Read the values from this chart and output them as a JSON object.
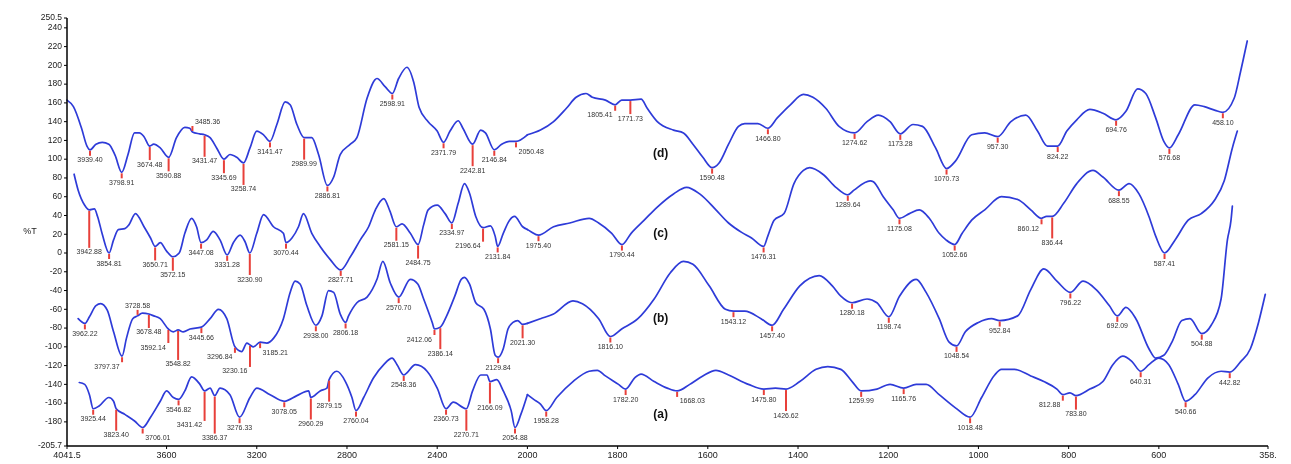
{
  "chart_data": [
    {
      "type": "line",
      "ylabel": "%T",
      "xlim": [
        4041.5,
        2000
      ],
      "xticks": [
        4041.5,
        3600,
        3200,
        2800,
        2400
      ],
      "ylim": [
        -205.7,
        250.5
      ],
      "yticks": [
        250.5,
        240,
        220,
        200,
        180,
        160,
        140,
        120,
        100,
        80,
        60,
        40,
        20,
        0,
        -20,
        -40,
        -60,
        -80,
        -100,
        -120,
        -140,
        -160,
        -180,
        -205.7
      ],
      "series": [
        {
          "color": "#2e3bd8",
          "x": [
            4041.5,
            4013,
            3977,
            3953,
            3939.4,
            3913,
            3885,
            3856,
            3828,
            3798.9,
            3771,
            3742,
            3721,
            3700,
            3674.5,
            3657,
            3628,
            3590.9,
            3556,
            3519,
            3497,
            3485.4,
            3453,
            3431.5,
            3407,
            3378,
            3345.7,
            3319,
            3289,
            3258.7,
            3230,
            3200,
            3170,
            3141.5,
            3111,
            3074,
            3052,
            3022,
            2990,
            2956,
            2926,
            2886.8,
            2859,
            2830,
            2785,
            2756,
            2711,
            2667,
            2630,
            2598.9,
            2571,
            2534,
            2504,
            2480,
            2440,
            2400,
            2371.8,
            2343,
            2307,
            2286,
            2242.8,
            2207,
            2186,
            2146.8,
            2114,
            2079,
            2050.5,
            2000
          ],
          "values": [
            163,
            156,
            133,
            114,
            110,
            116,
            118,
            116,
            104,
            86,
            105,
            128,
            128,
            124,
            114,
            116,
            112,
            102,
            123,
            134,
            133,
            129,
            127,
            126,
            123,
            112,
            100,
            105,
            102,
            96,
            112,
            130,
            126,
            119,
            137,
            161,
            158,
            137,
            123,
            123,
            105,
            72,
            81,
            105,
            116,
            123,
            165,
            186,
            177,
            170,
            186,
            198,
            182,
            155,
            140,
            130,
            118,
            130,
            141,
            133,
            116,
            131,
            128,
            110,
            116,
            119,
            119,
            126
          ]
        },
        {
          "color": "#2e3bd8",
          "x": [
            4010,
            3992,
            3963,
            3942.9,
            3920,
            3906,
            3885,
            3854.8,
            3835,
            3814,
            3785,
            3767,
            3738,
            3700,
            3671,
            3650.7,
            3628,
            3600,
            3572.2,
            3544,
            3519,
            3489,
            3467,
            3447.1,
            3422,
            3393,
            3363,
            3331.3,
            3304,
            3274,
            3252,
            3230.9,
            3200,
            3170,
            3126,
            3082,
            3070.4,
            3044,
            3015,
            2993,
            2956,
            2919,
            2874,
            2827.7,
            2785,
            2741,
            2704,
            2674,
            2637,
            2610,
            2581.2,
            2556,
            2519,
            2484.8,
            2460,
            2440,
            2400,
            2365,
            2335,
            2307,
            2279,
            2257,
            2229,
            2196.6,
            2164,
            2143,
            2131.8,
            2107,
            2079,
            2057,
            2021,
            2000
          ],
          "values": [
            84,
            67,
            51,
            46,
            47,
            39,
            20,
            0,
            14,
            25,
            26,
            30,
            42,
            28,
            16,
            7,
            11,
            2,
            -4,
            0,
            21,
            37,
            28,
            11,
            14,
            23,
            14,
            -2,
            11,
            19,
            12,
            0,
            21,
            41,
            28,
            21,
            11,
            16,
            28,
            42,
            21,
            7,
            -7,
            -18,
            -4,
            14,
            28,
            46,
            58,
            45,
            28,
            31,
            21,
            9,
            30,
            46,
            51,
            42,
            32,
            53,
            74,
            64,
            39,
            27,
            29,
            18,
            7,
            21,
            35,
            39,
            28,
            25
          ]
        },
        {
          "color": "#2e3bd8",
          "x": [
            3992,
            3962.2,
            3942,
            3913,
            3892,
            3863,
            3835,
            3797.4,
            3778,
            3750,
            3728.6,
            3707,
            3678.5,
            3657,
            3628,
            3592.1,
            3570,
            3548.8,
            3526,
            3496,
            3445.7,
            3407,
            3370,
            3333,
            3296.8,
            3267,
            3244,
            3230.2,
            3215,
            3185.2,
            3155,
            3126,
            3082,
            3052,
            3030,
            3008,
            2978,
            2938,
            2911,
            2882,
            2859,
            2830,
            2806.2,
            2793,
            2756,
            2711,
            2667,
            2641,
            2608,
            2570.7,
            2519,
            2486,
            2460,
            2422,
            2412.1,
            2386.1,
            2358,
            2322,
            2293,
            2279,
            2257,
            2229,
            2193,
            2164,
            2143,
            2129.8,
            2107,
            2086,
            2064,
            2043,
            2021.3,
            2000
          ],
          "values": [
            -70,
            -75,
            -68,
            -56,
            -54,
            -61,
            -84,
            -110,
            -91,
            -70,
            -67,
            -64,
            -65,
            -67,
            -70,
            -81,
            -84,
            -82,
            -84,
            -81,
            -79,
            -70,
            -60,
            -70,
            -100,
            -105,
            -96,
            -98,
            -100,
            -95,
            -96,
            -91,
            -70,
            -42,
            -30,
            -33,
            -56,
            -77,
            -67,
            -40,
            -42,
            -65,
            -74,
            -67,
            -53,
            -47,
            -28,
            -9,
            -32,
            -47,
            -28,
            -33,
            -49,
            -74,
            -81,
            -79,
            -67,
            -46,
            -28,
            -26,
            -33,
            -53,
            -60,
            -81,
            -109,
            -111,
            -102,
            -81,
            -74,
            -72,
            -76,
            -75
          ]
        },
        {
          "color": "#2e3bd8",
          "x": [
            3987,
            3963,
            3942,
            3925.4,
            3899,
            3856,
            3835,
            3823.4,
            3785,
            3742,
            3706,
            3671,
            3628,
            3600,
            3570,
            3546.8,
            3519,
            3489,
            3452,
            3431.4,
            3407,
            3386.4,
            3363,
            3319,
            3276.3,
            3230,
            3200,
            3141,
            3078,
            3022,
            2970,
            2960.3,
            2919,
            2889,
            2879.2,
            2845,
            2807,
            2778,
            2760,
            2726,
            2682,
            2637,
            2600,
            2578,
            2548.4,
            2496,
            2445,
            2400,
            2360.7,
            2329,
            2270.7,
            2243,
            2207,
            2179,
            2166.1,
            2136,
            2107,
            2072,
            2054.9,
            2029,
            2000
          ],
          "values": [
            -138,
            -140,
            -151,
            -166,
            -163,
            -154,
            -158,
            -166,
            -172,
            -179,
            -186,
            -175,
            -158,
            -147,
            -154,
            -156,
            -147,
            -132,
            -140,
            -147,
            -144,
            -152,
            -144,
            -151,
            -175,
            -154,
            -144,
            -151,
            -158,
            -152,
            -147,
            -154,
            -147,
            -144,
            -135,
            -126,
            -137,
            -154,
            -168,
            -154,
            -133,
            -119,
            -112,
            -119,
            -130,
            -119,
            -126,
            -144,
            -166,
            -159,
            -166,
            -147,
            -130,
            -130,
            -137,
            -135,
            -147,
            -168,
            -186,
            -172,
            -151
          ]
        }
      ],
      "annotations": [
        {
          "text": "3939.40",
          "x": 3939.4,
          "y": 110
        },
        {
          "text": "3798.91",
          "x": 3798.91,
          "y": 86
        },
        {
          "text": "3674.48",
          "x": 3674.48,
          "y": 114
        },
        {
          "text": "3590.88",
          "x": 3590.88,
          "y": 102
        },
        {
          "text": "3485.36",
          "x": 3485.36,
          "y": 129
        },
        {
          "text": "3431.47",
          "x": 3431.47,
          "y": 126
        },
        {
          "text": "3345.69",
          "x": 3345.69,
          "y": 100
        },
        {
          "text": "3258.74",
          "x": 3258.74,
          "y": 96
        },
        {
          "text": "3141.47",
          "x": 3141.47,
          "y": 119
        },
        {
          "text": "2989.99",
          "x": 2989.99,
          "y": 123
        },
        {
          "text": "2886.81",
          "x": 2886.81,
          "y": 72
        },
        {
          "text": "2598.91",
          "x": 2598.91,
          "y": 170
        },
        {
          "text": "2371.79",
          "x": 2371.79,
          "y": 118
        },
        {
          "text": "2242.81",
          "x": 2242.81,
          "y": 116
        },
        {
          "text": "2146.84",
          "x": 2146.84,
          "y": 110
        },
        {
          "text": "2050.48",
          "x": 2050.48,
          "y": 119
        },
        {
          "text": "3942.88",
          "x": 3942.88,
          "y": 46
        },
        {
          "text": "3854.81",
          "x": 3854.81,
          "y": 0
        },
        {
          "text": "3650.71",
          "x": 3650.71,
          "y": 7
        },
        {
          "text": "3572.15",
          "x": 3572.15,
          "y": -4
        },
        {
          "text": "3447.08",
          "x": 3447.08,
          "y": 11
        },
        {
          "text": "3331.28",
          "x": 3331.28,
          "y": -2
        },
        {
          "text": "3230.90",
          "x": 3230.9,
          "y": 0
        },
        {
          "text": "3070.44",
          "x": 3070.44,
          "y": 11
        },
        {
          "text": "2827.71",
          "x": 2827.71,
          "y": -18
        },
        {
          "text": "2581.15",
          "x": 2581.15,
          "y": 28
        },
        {
          "text": "2484.75",
          "x": 2484.75,
          "y": 9
        },
        {
          "text": "2334.97",
          "x": 2334.97,
          "y": 32
        },
        {
          "text": "2196.64",
          "x": 2196.64,
          "y": 27
        },
        {
          "text": "2131.84",
          "x": 2131.84,
          "y": 7
        },
        {
          "text": "3962.22",
          "x": 3962.22,
          "y": -75
        },
        {
          "text": "3797.37",
          "x": 3797.37,
          "y": -110
        },
        {
          "text": "3728.58",
          "x": 3728.58,
          "y": -67
        },
        {
          "text": "3678.48",
          "x": 3678.48,
          "y": -65
        },
        {
          "text": "3592.14",
          "x": 3592.14,
          "y": -81
        },
        {
          "text": "3548.82",
          "x": 3548.82,
          "y": -82
        },
        {
          "text": "3445.66",
          "x": 3445.66,
          "y": -79
        },
        {
          "text": "3296.84",
          "x": 3296.84,
          "y": -100
        },
        {
          "text": "3230.16",
          "x": 3230.16,
          "y": -98
        },
        {
          "text": "3185.21",
          "x": 3185.21,
          "y": -95
        },
        {
          "text": "2938.00",
          "x": 2938,
          "y": -77
        },
        {
          "text": "2806.18",
          "x": 2806.18,
          "y": -74
        },
        {
          "text": "2570.70",
          "x": 2570.7,
          "y": -47
        },
        {
          "text": "2412.06",
          "x": 2412.06,
          "y": -81
        },
        {
          "text": "2386.14",
          "x": 2386.14,
          "y": -79
        },
        {
          "text": "2129.84",
          "x": 2129.84,
          "y": -111
        },
        {
          "text": "2021.30",
          "x": 2021.3,
          "y": -76
        },
        {
          "text": "3925.44",
          "x": 3925.44,
          "y": -166
        },
        {
          "text": "3823.40",
          "x": 3823.4,
          "y": -166
        },
        {
          "text": "3706.01",
          "x": 3706.01,
          "y": -186
        },
        {
          "text": "3546.82",
          "x": 3546.82,
          "y": -156
        },
        {
          "text": "3431.42",
          "x": 3431.42,
          "y": -147
        },
        {
          "text": "3386.37",
          "x": 3386.37,
          "y": -152
        },
        {
          "text": "3276.33",
          "x": 3276.33,
          "y": -175
        },
        {
          "text": "3078.05",
          "x": 3078.05,
          "y": -158
        },
        {
          "text": "2960.29",
          "x": 2960.29,
          "y": -154
        },
        {
          "text": "2879.15",
          "x": 2879.15,
          "y": -135
        },
        {
          "text": "2760.04",
          "x": 2760.04,
          "y": -168
        },
        {
          "text": "2548.36",
          "x": 2548.36,
          "y": -130
        },
        {
          "text": "2360.73",
          "x": 2360.73,
          "y": -166
        },
        {
          "text": "2270.71",
          "x": 2270.71,
          "y": -166
        },
        {
          "text": "2166.09",
          "x": 2166.09,
          "y": -137
        },
        {
          "text": "2054.88",
          "x": 2054.88,
          "y": -186
        }
      ]
    },
    {
      "type": "line",
      "xlim": [
        2000,
        358
      ],
      "xticks": [
        2000,
        1800,
        1600,
        1400,
        1200,
        1000,
        800,
        600,
        {
          "value": 358,
          "label": "358."
        }
      ],
      "ylim": [
        -205.7,
        250.5
      ],
      "tick_labels": "x",
      "series": [
        {
          "name": "(d)",
          "color": "#2e3bd8",
          "x": [
            2000,
            1971,
            1942,
            1914,
            1892,
            1870,
            1856,
            1827,
            1805.4,
            1791,
            1771.7,
            1748,
            1734,
            1712,
            1676,
            1654,
            1633,
            1611,
            1590.5,
            1575,
            1554,
            1532,
            1518,
            1489,
            1466.8,
            1446,
            1417,
            1388,
            1367,
            1338,
            1309,
            1274.6,
            1247,
            1222,
            1196,
            1173.3,
            1145,
            1124,
            1095,
            1070.7,
            1051,
            1015,
            986,
            957.3,
            928,
            895,
            869,
            847,
            824.2,
            804,
            782,
            753,
            724,
            694.8,
            673,
            647,
            629,
            607,
            589,
            576.7,
            557,
            520,
            499,
            475,
            458.1,
            433,
            419,
            404
          ],
          "values": [
            126,
            131,
            140,
            154,
            166,
            170,
            166,
            163,
            158,
            163,
            163,
            164,
            154,
            140,
            131,
            128,
            116,
            102,
            91,
            96,
            116,
            135,
            138,
            138,
            133,
            144,
            158,
            169,
            166,
            154,
            135,
            128,
            140,
            147,
            140,
            127,
            137,
            135,
            112,
            90,
            98,
            126,
            128,
            124,
            140,
            147,
            130,
            114,
            114,
            130,
            142,
            153,
            149,
            142,
            151,
            175,
            170,
            144,
            119,
            112,
            126,
            158,
            156,
            152,
            150,
            165,
            193,
            226
          ]
        },
        {
          "name": "(c)",
          "color": "#2e3bd8",
          "x": [
            2000,
            1993,
            1975.4,
            1942,
            1906,
            1863,
            1842,
            1813,
            1790.4,
            1770,
            1741,
            1712,
            1676,
            1647,
            1618,
            1582,
            1554,
            1525,
            1503,
            1476.3,
            1467,
            1453,
            1431,
            1409,
            1388,
            1374,
            1345,
            1316,
            1289.6,
            1276,
            1240,
            1233,
            1211,
            1189,
            1175.1,
            1153,
            1131,
            1109,
            1087,
            1072,
            1052.7,
            1036,
            1015,
            986,
            949,
            913,
            884,
            860.1,
            849,
            836.4,
            811,
            782,
            746,
            724,
            688.6,
            666,
            644,
            622,
            607,
            587.4,
            564,
            535,
            506,
            477,
            455,
            437,
            426
          ],
          "values": [
            25,
            23,
            19,
            28,
            32,
            37,
            32,
            21,
            9,
            21,
            35,
            49,
            63,
            70,
            63,
            46,
            32,
            22,
            16,
            7,
            18,
            35,
            42,
            74,
            88,
            91,
            84,
            70,
            62,
            67,
            77,
            76,
            60,
            46,
            37,
            42,
            46,
            37,
            21,
            14,
            9,
            21,
            35,
            46,
            60,
            57,
            46,
            37,
            39,
            39,
            53,
            74,
            88,
            81,
            67,
            74,
            63,
            39,
            18,
            0,
            14,
            35,
            42,
            56,
            77,
            112,
            130
          ]
        },
        {
          "name": "(b)",
          "color": "#2e3bd8",
          "x": [
            2000,
            1971,
            1942,
            1899,
            1878,
            1842,
            1816.1,
            1791,
            1755,
            1719,
            1683,
            1654,
            1633,
            1597,
            1561,
            1543.1,
            1518,
            1482,
            1457.4,
            1432,
            1396,
            1353,
            1324,
            1305,
            1280.2,
            1247,
            1225,
            1198.7,
            1175,
            1138,
            1116,
            1087,
            1065,
            1048.5,
            1029,
            1000,
            971,
            952.8,
            913,
            884,
            855,
            826,
            796.2,
            768,
            739,
            710,
            692.1,
            673,
            651,
            622,
            607,
            589,
            571,
            549,
            531,
            504.9,
            484,
            462,
            448,
            440,
            437
          ],
          "values": [
            -75,
            -70,
            -65,
            -51,
            -54,
            -70,
            -89,
            -81,
            -70,
            -49,
            -21,
            -9,
            -12,
            -35,
            -60,
            -62,
            -62,
            -70,
            -77,
            -60,
            -35,
            -24,
            -35,
            -46,
            -53,
            -49,
            -53,
            -68,
            -46,
            -28,
            -42,
            -70,
            -95,
            -99,
            -84,
            -74,
            -70,
            -72,
            -67,
            -39,
            -17,
            -30,
            -42,
            -30,
            -39,
            -56,
            -67,
            -58,
            -70,
            -102,
            -112,
            -109,
            -95,
            -72,
            -70,
            -86,
            -77,
            -49,
            14,
            35,
            50
          ]
        },
        {
          "name": "(a)",
          "color": "#2e3bd8",
          "x": [
            2000,
            1986,
            1971,
            1958.3,
            1935,
            1899,
            1863,
            1845,
            1827,
            1798,
            1782.2,
            1762,
            1748,
            1719,
            1690,
            1668,
            1640,
            1611,
            1582,
            1554,
            1510,
            1475.8,
            1450,
            1426.6,
            1396,
            1360,
            1334,
            1305,
            1280,
            1260,
            1225,
            1196,
            1165.8,
            1138,
            1116,
            1087,
            1051,
            1018.5,
            993,
            964,
            949,
            920,
            884,
            855,
            826,
            812.9,
            797,
            783.8,
            753,
            724,
            702,
            680,
            659,
            640.3,
            622,
            600,
            578,
            557,
            540.7,
            520,
            491,
            462,
            442.8,
            419,
            397,
            379,
            364
          ],
          "values": [
            -151,
            -156,
            -161,
            -168,
            -154,
            -137,
            -126,
            -125,
            -131,
            -140,
            -145,
            -133,
            -129,
            -137,
            -144,
            -147,
            -140,
            -131,
            -125,
            -130,
            -140,
            -145,
            -144,
            -145,
            -137,
            -124,
            -121,
            -124,
            -137,
            -147,
            -145,
            -140,
            -144,
            -140,
            -140,
            -151,
            -165,
            -175,
            -154,
            -130,
            -124,
            -124,
            -131,
            -137,
            -145,
            -151,
            -149,
            -152,
            -145,
            -137,
            -119,
            -110,
            -116,
            -126,
            -119,
            -112,
            -119,
            -140,
            -158,
            -151,
            -133,
            -126,
            -127,
            -116,
            -102,
            -74,
            -44
          ]
        }
      ],
      "annotations": [
        {
          "text": "1805.41",
          "x": 1805.41,
          "y": 158
        },
        {
          "text": "1771.73",
          "x": 1771.73,
          "y": 163
        },
        {
          "text": "1590.48",
          "x": 1590.48,
          "y": 91
        },
        {
          "text": "1466.80",
          "x": 1466.8,
          "y": 133
        },
        {
          "text": "1274.62",
          "x": 1274.62,
          "y": 128
        },
        {
          "text": "1173.28",
          "x": 1173.28,
          "y": 127
        },
        {
          "text": "1070.73",
          "x": 1070.73,
          "y": 90
        },
        {
          "text": "957.30",
          "x": 957.3,
          "y": 124
        },
        {
          "text": "824.22",
          "x": 824.22,
          "y": 114
        },
        {
          "text": "694.76",
          "x": 694.76,
          "y": 142
        },
        {
          "text": "576.68",
          "x": 576.68,
          "y": 112
        },
        {
          "text": "458.10",
          "x": 458.1,
          "y": 150
        },
        {
          "text": "1975.40",
          "x": 1975.4,
          "y": 19
        },
        {
          "text": "1790.44",
          "x": 1790.44,
          "y": 9
        },
        {
          "text": "1476.31",
          "x": 1476.31,
          "y": 7
        },
        {
          "text": "1289.64",
          "x": 1289.64,
          "y": 62
        },
        {
          "text": "1175.08",
          "x": 1175.08,
          "y": 37
        },
        {
          "text": "1052.66",
          "x": 1052.66,
          "y": 9
        },
        {
          "text": "860.12",
          "x": 860.12,
          "y": 37
        },
        {
          "text": "836.44",
          "x": 836.44,
          "y": 39
        },
        {
          "text": "688.55",
          "x": 688.55,
          "y": 67
        },
        {
          "text": "587.41",
          "x": 587.41,
          "y": 0
        },
        {
          "text": "1816.10",
          "x": 1816.1,
          "y": -89
        },
        {
          "text": "1543.12",
          "x": 1543.12,
          "y": -62
        },
        {
          "text": "1457.40",
          "x": 1457.4,
          "y": -77
        },
        {
          "text": "1280.18",
          "x": 1280.18,
          "y": -53
        },
        {
          "text": "1198.74",
          "x": 1198.74,
          "y": -68
        },
        {
          "text": "1048.54",
          "x": 1048.54,
          "y": -99
        },
        {
          "text": "952.84",
          "x": 952.84,
          "y": -72
        },
        {
          "text": "796.22",
          "x": 796.22,
          "y": -42
        },
        {
          "text": "692.09",
          "x": 692.09,
          "y": -67
        },
        {
          "text": "504.88",
          "x": 504.88,
          "y": -86
        },
        {
          "text": "1958.28",
          "x": 1958.28,
          "y": -168
        },
        {
          "text": "1782.20",
          "x": 1782.2,
          "y": -145
        },
        {
          "text": "1668.03",
          "x": 1668.03,
          "y": -147
        },
        {
          "text": "1475.80",
          "x": 1475.8,
          "y": -145
        },
        {
          "text": "1426.62",
          "x": 1426.62,
          "y": -145
        },
        {
          "text": "1259.99",
          "x": 1259.99,
          "y": -147
        },
        {
          "text": "1165.76",
          "x": 1165.76,
          "y": -144
        },
        {
          "text": "1018.48",
          "x": 1018.48,
          "y": -175
        },
        {
          "text": "812.88",
          "x": 812.88,
          "y": -151
        },
        {
          "text": "783.80",
          "x": 783.8,
          "y": -152
        },
        {
          "text": "640.31",
          "x": 640.31,
          "y": -126
        },
        {
          "text": "540.66",
          "x": 540.66,
          "y": -158
        },
        {
          "text": "442.82",
          "x": 442.82,
          "y": -127
        }
      ]
    }
  ]
}
